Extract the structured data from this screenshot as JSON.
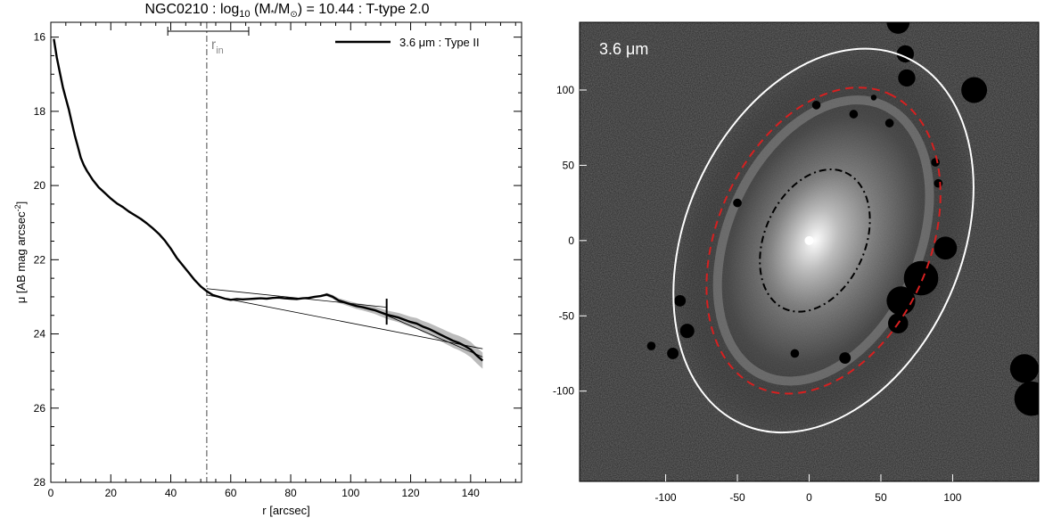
{
  "chart_data": [
    {
      "type": "line",
      "title_main": "NGC0210 : log",
      "title_sub": "10",
      "title_mid": " (M",
      "title_star": "*",
      "title_slash": "/M",
      "title_sun": "⊙",
      "title_end": ") = 10.44 : T-type 2.0",
      "xlabel": "r [arcsec]",
      "ylabel_main": "μ [AB mag arcsec",
      "ylabel_sup": "-2",
      "ylabel_end": "]",
      "xlim": [
        0,
        157
      ],
      "ylim": [
        28,
        15.6
      ],
      "y_inverted": true,
      "xticks": [
        0,
        20,
        40,
        60,
        80,
        100,
        120,
        140
      ],
      "yticks": [
        16,
        18,
        20,
        22,
        24,
        26,
        28
      ],
      "legend_label": "3.6 μm : Type II",
      "legend_position": "top-right",
      "series": [
        {
          "name": "3.6 μm : Type II",
          "x": [
            1,
            2,
            3,
            4,
            5,
            6,
            7,
            8,
            9,
            10,
            11,
            12,
            14,
            16,
            18,
            20,
            22,
            24,
            26,
            28,
            30,
            32,
            34,
            36,
            38,
            40,
            42,
            44,
            46,
            48,
            50,
            52,
            54,
            56,
            58,
            60,
            62,
            64,
            66,
            68,
            70,
            72,
            74,
            76,
            78,
            80,
            82,
            84,
            86,
            88,
            90,
            92,
            94,
            96,
            98,
            100,
            102,
            104,
            106,
            108,
            110,
            112,
            114,
            116,
            118,
            120,
            122,
            124,
            126,
            128,
            130,
            132,
            134,
            136,
            138,
            140,
            142,
            144
          ],
          "y": [
            16.05,
            16.55,
            16.95,
            17.35,
            17.65,
            17.95,
            18.3,
            18.65,
            18.95,
            19.25,
            19.45,
            19.6,
            19.85,
            20.05,
            20.2,
            20.35,
            20.48,
            20.58,
            20.7,
            20.8,
            20.9,
            21.02,
            21.15,
            21.3,
            21.48,
            21.7,
            21.95,
            22.15,
            22.35,
            22.55,
            22.72,
            22.85,
            22.95,
            23.0,
            23.05,
            23.08,
            23.06,
            23.07,
            23.06,
            23.05,
            23.04,
            23.05,
            23.03,
            23.02,
            23.04,
            23.05,
            23.06,
            23.04,
            23.03,
            23.0,
            22.98,
            22.94,
            23.0,
            23.1,
            23.15,
            23.2,
            23.25,
            23.28,
            23.32,
            23.36,
            23.42,
            23.48,
            23.52,
            23.56,
            23.62,
            23.68,
            23.72,
            23.8,
            23.86,
            23.94,
            24.02,
            24.1,
            24.18,
            24.24,
            24.32,
            24.42,
            24.58,
            24.72
          ],
          "color": "#000000"
        }
      ],
      "fit_lines": [
        {
          "x": [
            52,
            112
          ],
          "y": [
            22.78,
            23.28
          ]
        },
        {
          "x": [
            52,
            144
          ],
          "y": [
            22.95,
            24.4
          ]
        },
        {
          "x": [
            112,
            144
          ],
          "y": [
            23.5,
            24.62
          ]
        }
      ],
      "r_in": 52,
      "r_in_label": "r",
      "r_in_sub": "in",
      "r_in_range": [
        39,
        66
      ],
      "break_marker": {
        "x": 112,
        "y": [
          23.05,
          23.75
        ]
      }
    },
    {
      "type": "heatmap",
      "band_label": "3.6 μm",
      "xlim": [
        -160,
        160
      ],
      "ylim": [
        -160,
        145
      ],
      "xticks": [
        -100,
        -50,
        0,
        50,
        100
      ],
      "yticks": [
        -100,
        -50,
        0,
        50,
        100
      ],
      "ellipses": [
        {
          "name": "outer",
          "cx": 10,
          "cy": 0,
          "a": 140,
          "b": 96,
          "pa_deg": 24,
          "style": "solid",
          "color": "#ffffff"
        },
        {
          "name": "break",
          "cx": 10,
          "cy": 0,
          "a": 112,
          "b": 74,
          "pa_deg": 24,
          "style": "dashed",
          "color": "#d62020"
        },
        {
          "name": "r-in",
          "cx": 4,
          "cy": 0,
          "a": 52,
          "b": 35,
          "pa_deg": 24,
          "style": "dashdot",
          "color": "#000000"
        }
      ],
      "masks": [
        {
          "x": 62,
          "y": 145,
          "r": 8
        },
        {
          "x": 67,
          "y": 124,
          "r": 6
        },
        {
          "x": 68,
          "y": 108,
          "r": 6
        },
        {
          "x": 115,
          "y": 100,
          "r": 9
        },
        {
          "x": 5,
          "y": 90,
          "r": 3
        },
        {
          "x": 31,
          "y": 84,
          "r": 3
        },
        {
          "x": 56,
          "y": 78,
          "r": 3
        },
        {
          "x": 88,
          "y": 52,
          "r": 3
        },
        {
          "x": -50,
          "y": 25,
          "r": 3
        },
        {
          "x": 90,
          "y": 38,
          "r": 3
        },
        {
          "x": 78,
          "y": -25,
          "r": 12
        },
        {
          "x": 64,
          "y": -40,
          "r": 10
        },
        {
          "x": 62,
          "y": -55,
          "r": 7
        },
        {
          "x": 95,
          "y": -5,
          "r": 8
        },
        {
          "x": -90,
          "y": -40,
          "r": 4
        },
        {
          "x": -85,
          "y": -60,
          "r": 5
        },
        {
          "x": -95,
          "y": -75,
          "r": 4
        },
        {
          "x": 150,
          "y": -85,
          "r": 10
        },
        {
          "x": 155,
          "y": -105,
          "r": 12
        },
        {
          "x": -10,
          "y": -75,
          "r": 3
        },
        {
          "x": 25,
          "y": -78,
          "r": 4
        },
        {
          "x": -110,
          "y": -70,
          "r": 3
        },
        {
          "x": 45,
          "y": 95,
          "r": 2
        }
      ]
    }
  ]
}
